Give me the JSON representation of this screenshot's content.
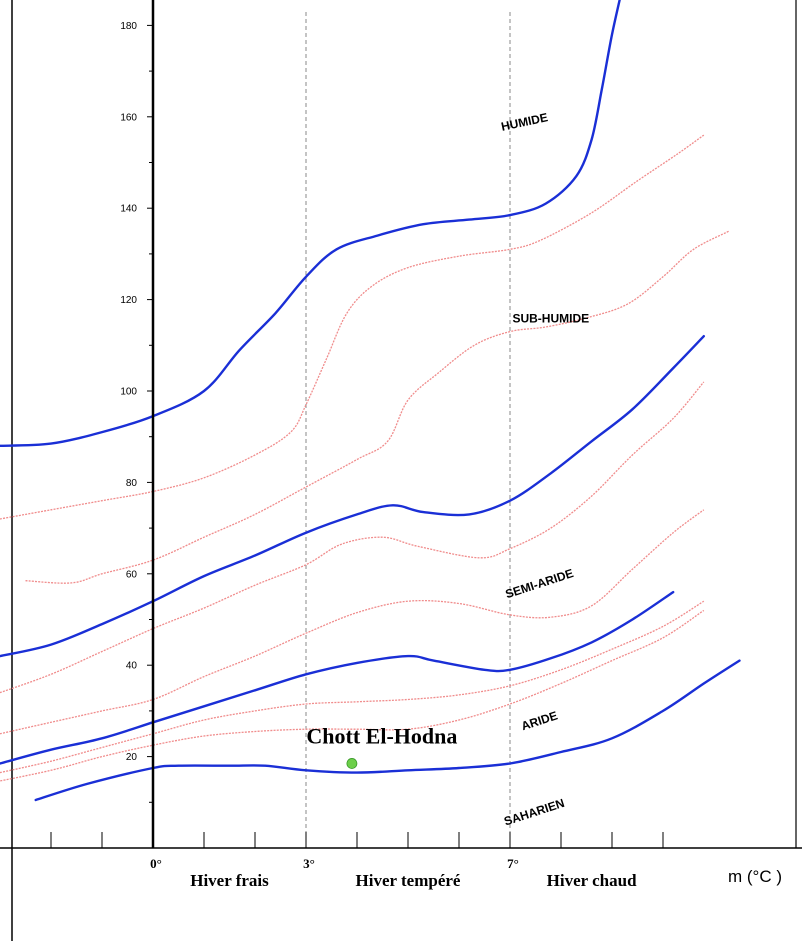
{
  "chart_data": {
    "type": "line",
    "title": "",
    "xlabel": "m (°C )",
    "ylabel": "",
    "xlim": [
      -4.3,
      10.3
    ],
    "ylim": [
      -5,
      190
    ],
    "yticks": [
      20,
      40,
      60,
      80,
      100,
      120,
      140,
      160,
      180
    ],
    "xticks": [
      {
        "value": 0,
        "label": "0°"
      },
      {
        "value": 3,
        "label": "3°"
      },
      {
        "value": 7,
        "label": "7°"
      }
    ],
    "winter_regions": [
      {
        "label": "Hiver frais",
        "x": 1.5
      },
      {
        "label": "Hiver tempéré",
        "x": 5.0
      },
      {
        "label": "Hiver chaud",
        "x": 8.6
      }
    ],
    "zone_labels": [
      {
        "label": "HUMIDE",
        "x": 7.3,
        "y": 158,
        "angle": -12
      },
      {
        "label": "SUB-HUMIDE",
        "x": 7.8,
        "y": 115,
        "angle": 0
      },
      {
        "label": "SEMI-ARIDE",
        "x": 7.6,
        "y": 57,
        "angle": -18
      },
      {
        "label": "ARIDE",
        "x": 7.6,
        "y": 27,
        "angle": -18
      },
      {
        "label": "SAHARIEN",
        "x": 7.5,
        "y": 7,
        "angle": -18
      }
    ],
    "station": {
      "label": "Chott El-Hodna",
      "x": 3.9,
      "y": 18.5,
      "color": "#6dcf4a"
    },
    "colors": {
      "boundary": "#1a2fd6",
      "subdivision": "#f08c8c",
      "axis": "#000000",
      "winter_divider": "#888888"
    },
    "boundaries": [
      {
        "points": [
          [
            -3,
            88
          ],
          [
            -2,
            88.5
          ],
          [
            -1,
            91
          ],
          [
            0,
            94.5
          ],
          [
            1,
            100
          ],
          [
            1.7,
            109
          ],
          [
            2.4,
            117
          ],
          [
            3,
            125
          ],
          [
            3.6,
            131
          ],
          [
            4.4,
            134
          ],
          [
            5.3,
            136.5
          ],
          [
            6.2,
            137.5
          ],
          [
            7,
            138.5
          ],
          [
            7.7,
            141
          ],
          [
            8.3,
            147
          ],
          [
            8.6,
            155
          ],
          [
            8.8,
            166
          ],
          [
            9.0,
            178
          ],
          [
            9.2,
            188
          ]
        ]
      },
      {
        "points": [
          [
            -3,
            42
          ],
          [
            -2,
            44.5
          ],
          [
            -1,
            49
          ],
          [
            0,
            54
          ],
          [
            1,
            59.5
          ],
          [
            2,
            64
          ],
          [
            3,
            69
          ],
          [
            4,
            73
          ],
          [
            4.7,
            75
          ],
          [
            5.3,
            73.5
          ],
          [
            6.2,
            73
          ],
          [
            7,
            76
          ],
          [
            7.8,
            82
          ],
          [
            8.6,
            89
          ],
          [
            9.4,
            96
          ],
          [
            10.2,
            105
          ],
          [
            10.8,
            112
          ]
        ]
      },
      {
        "points": [
          [
            -3,
            18.5
          ],
          [
            -2,
            21.5
          ],
          [
            -1,
            24
          ],
          [
            0,
            27.5
          ],
          [
            1,
            31
          ],
          [
            2,
            34.5
          ],
          [
            3,
            38
          ],
          [
            4,
            40.5
          ],
          [
            5,
            42
          ],
          [
            5.5,
            41
          ],
          [
            6.5,
            39
          ],
          [
            7,
            39
          ],
          [
            7.8,
            41.5
          ],
          [
            8.6,
            45
          ],
          [
            9.4,
            50
          ],
          [
            10.2,
            56
          ]
        ]
      },
      {
        "points": [
          [
            -2.3,
            10.5
          ],
          [
            -1.3,
            14
          ],
          [
            0,
            17.5
          ],
          [
            0.5,
            18
          ],
          [
            1.5,
            18
          ],
          [
            2.2,
            18
          ],
          [
            3,
            17
          ],
          [
            4,
            16.5
          ],
          [
            5,
            17
          ],
          [
            6,
            17.5
          ],
          [
            7,
            18.5
          ],
          [
            8,
            21
          ],
          [
            9,
            24
          ],
          [
            10,
            30
          ],
          [
            10.8,
            36
          ],
          [
            11.5,
            41
          ]
        ]
      }
    ],
    "subdivisions": [
      {
        "points": [
          [
            -3,
            72
          ],
          [
            -2,
            74
          ],
          [
            -1,
            76
          ],
          [
            0,
            78
          ],
          [
            1,
            81
          ],
          [
            2,
            86
          ],
          [
            2.7,
            91
          ],
          [
            3.0,
            97
          ],
          [
            3.4,
            107
          ],
          [
            3.8,
            117
          ],
          [
            4.3,
            123
          ],
          [
            5,
            127
          ],
          [
            6,
            129.5
          ],
          [
            7,
            131
          ],
          [
            7.6,
            133
          ],
          [
            8.6,
            139
          ],
          [
            9.5,
            146
          ],
          [
            10.3,
            152
          ],
          [
            10.8,
            156
          ]
        ]
      },
      {
        "points": [
          [
            -2.5,
            58.5
          ],
          [
            -1.6,
            58
          ],
          [
            -1,
            60
          ],
          [
            0,
            63
          ],
          [
            1,
            68
          ],
          [
            2,
            73
          ],
          [
            3,
            79
          ],
          [
            4,
            85
          ],
          [
            4.6,
            89
          ],
          [
            5.0,
            98
          ],
          [
            5.6,
            104
          ],
          [
            6.3,
            110
          ],
          [
            7,
            113
          ],
          [
            7.7,
            114
          ],
          [
            8.5,
            116
          ],
          [
            9.3,
            119
          ],
          [
            10,
            125
          ],
          [
            10.6,
            131
          ],
          [
            11.3,
            135
          ]
        ]
      },
      {
        "points": [
          [
            -3,
            34
          ],
          [
            -2,
            38
          ],
          [
            -1,
            43
          ],
          [
            0,
            48
          ],
          [
            1,
            52.5
          ],
          [
            2,
            57.5
          ],
          [
            3,
            62
          ],
          [
            3.7,
            66.5
          ],
          [
            4.5,
            68
          ],
          [
            5.2,
            66
          ],
          [
            6.4,
            63.5
          ],
          [
            7,
            65.5
          ],
          [
            7.8,
            70
          ],
          [
            8.6,
            77
          ],
          [
            9.4,
            86
          ],
          [
            10.2,
            94
          ],
          [
            10.8,
            102
          ]
        ]
      },
      {
        "points": [
          [
            -3,
            25
          ],
          [
            -2,
            27.5
          ],
          [
            -1,
            30
          ],
          [
            0,
            32.5
          ],
          [
            1,
            37.5
          ],
          [
            2,
            42
          ],
          [
            3,
            47
          ],
          [
            4,
            51.5
          ],
          [
            5,
            54
          ],
          [
            6,
            53.5
          ],
          [
            7,
            51
          ],
          [
            7.8,
            50.5
          ],
          [
            8.6,
            53
          ],
          [
            9.4,
            61
          ],
          [
            10.2,
            69
          ],
          [
            10.8,
            74
          ]
        ]
      },
      {
        "points": [
          [
            -3,
            16.5
          ],
          [
            -2,
            19
          ],
          [
            -1,
            22
          ],
          [
            0,
            25
          ],
          [
            1,
            28
          ],
          [
            2,
            30
          ],
          [
            3,
            31.5
          ],
          [
            4,
            32
          ],
          [
            5,
            32.5
          ],
          [
            6,
            33.5
          ],
          [
            7,
            35.5
          ],
          [
            8,
            39
          ],
          [
            9,
            43.5
          ],
          [
            10,
            48.5
          ],
          [
            10.8,
            54
          ]
        ]
      },
      {
        "points": [
          [
            -3.3,
            14
          ],
          [
            -2,
            17
          ],
          [
            -1,
            20
          ],
          [
            0,
            22.5
          ],
          [
            1,
            24.5
          ],
          [
            2,
            25.5
          ],
          [
            3,
            26
          ],
          [
            4,
            26
          ],
          [
            5,
            26
          ],
          [
            6,
            28
          ],
          [
            7,
            31.5
          ],
          [
            8,
            36
          ],
          [
            9,
            41
          ],
          [
            10,
            46
          ],
          [
            10.8,
            52
          ]
        ]
      }
    ]
  }
}
